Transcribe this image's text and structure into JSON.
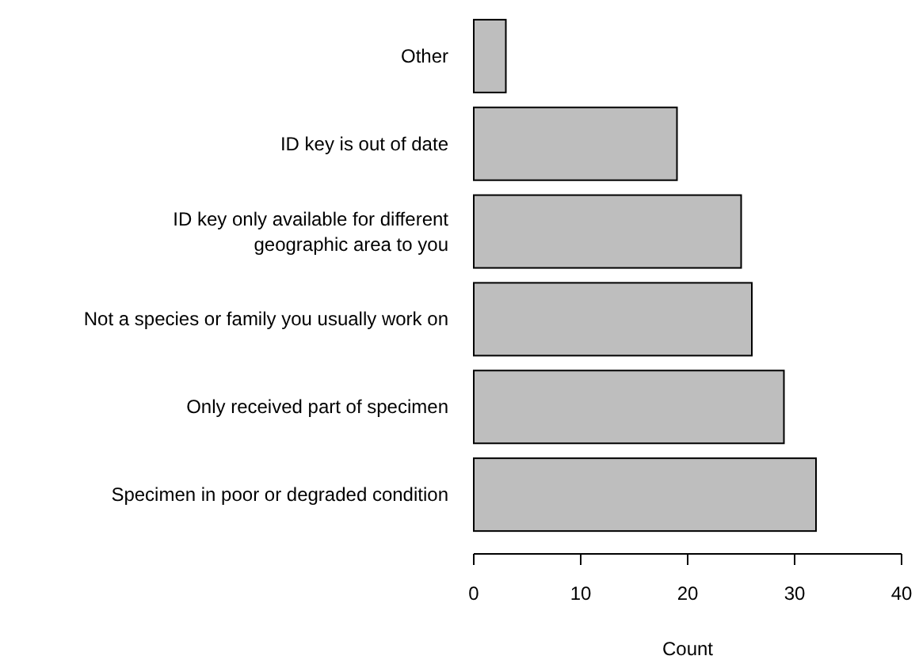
{
  "chart_data": {
    "type": "bar",
    "orientation": "horizontal",
    "xlabel": "Count",
    "categories": [
      "Other",
      "ID key is out of date",
      "ID key only available for different\ngeographic area to you",
      "Not a species or family you usually work on",
      "Only received part of specimen",
      "Specimen in poor or degraded condition"
    ],
    "values": [
      3,
      19,
      25,
      26,
      29,
      32
    ],
    "color": "#bebebe",
    "xlim": [
      0,
      40
    ],
    "xticks": [
      0,
      10,
      20,
      30,
      40
    ],
    "grid": false
  }
}
